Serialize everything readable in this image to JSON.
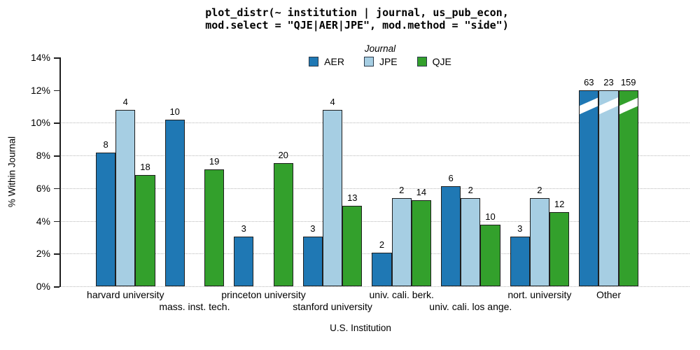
{
  "title": {
    "line1": "plot_distr(~ institution | journal, us_pub_econ,",
    "line2": "mod.select = \"QJE|AER|JPE\", mod.method = \"side\")"
  },
  "chart_data": {
    "type": "bar",
    "title": "plot_distr(~ institution | journal, us_pub_econ, mod.select = \"QJE|AER|JPE\", mod.method = \"side\")",
    "xlabel": "U.S. Institution",
    "ylabel": "% Within Journal",
    "ylim": [
      0,
      14
    ],
    "y_tick_labels": [
      "0%",
      "2%",
      "4%",
      "6%",
      "8%",
      "10%",
      "12%",
      "14%"
    ],
    "y_ticks_pct": [
      0,
      2,
      4,
      6,
      8,
      10,
      12,
      14
    ],
    "gridlines_pct": [
      0,
      2,
      4,
      6,
      8,
      10
    ],
    "grid_style": "dotted horizontal",
    "legend_title": "Journal",
    "legend_position": "top-center",
    "bar_value_labels": "counts shown above each bar",
    "truncation_note": "Other bars are cut at ~12% with white diagonal break marks",
    "categories": [
      "harvard university",
      "mass. inst. tech.",
      "princeton university",
      "stanford university",
      "univ. cali. berk.",
      "univ. cali. los ange.",
      "nort. university",
      "Other"
    ],
    "category_label_rows": [
      1,
      2,
      1,
      2,
      1,
      2,
      1,
      1
    ],
    "series": [
      {
        "name": "AER",
        "color": "#1f78b4",
        "counts": [
          8,
          10,
          3,
          3,
          2,
          6,
          3,
          63
        ],
        "heights_pct": [
          8.16,
          10.2,
          3.06,
          3.06,
          2.04,
          6.12,
          3.06,
          11.97
        ],
        "truncated": [
          false,
          false,
          false,
          false,
          false,
          false,
          false,
          true
        ]
      },
      {
        "name": "JPE",
        "color": "#a6cee3",
        "counts": [
          4,
          null,
          null,
          4,
          2,
          2,
          2,
          23
        ],
        "heights_pct": [
          10.81,
          null,
          null,
          10.81,
          5.41,
          5.41,
          5.41,
          11.97
        ],
        "truncated": [
          false,
          false,
          false,
          false,
          false,
          false,
          false,
          true
        ]
      },
      {
        "name": "QJE",
        "color": "#33a02c",
        "counts": [
          18,
          19,
          20,
          13,
          14,
          10,
          12,
          159
        ],
        "heights_pct": [
          6.79,
          7.17,
          7.55,
          4.91,
          5.28,
          3.77,
          4.53,
          11.97
        ],
        "truncated": [
          false,
          false,
          false,
          false,
          false,
          false,
          false,
          true
        ]
      }
    ]
  }
}
